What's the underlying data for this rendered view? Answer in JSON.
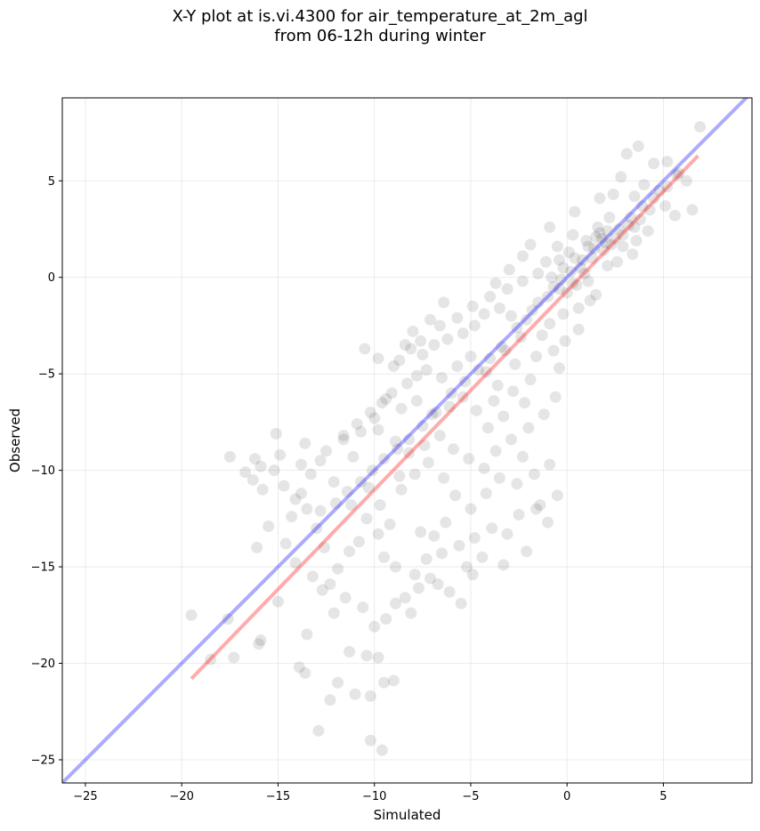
{
  "title_line1": "X-Y plot at is.vi.4300 for air_temperature_at_2m_agl",
  "title_line2": "from 06-12h during winter",
  "chart_data": {
    "type": "scatter",
    "xlabel": "Simulated",
    "ylabel": "Observed",
    "xlim": [
      -26.2,
      9.6
    ],
    "ylim": [
      -26.2,
      9.3
    ],
    "xticks": [
      -25,
      -20,
      -15,
      -10,
      -5,
      0,
      5
    ],
    "yticks": [
      -25,
      -20,
      -15,
      -10,
      -5,
      0,
      5
    ],
    "xtick_labels": [
      "−25",
      "−20",
      "−15",
      "−10",
      "−5",
      "0",
      "5"
    ],
    "ytick_labels": [
      "−25",
      "−20",
      "−15",
      "−10",
      "−5",
      "0",
      "5"
    ],
    "grid": true,
    "point_color": "#000000",
    "point_alpha": 0.1,
    "identity_line": {
      "color": "#0000ff",
      "alpha": 0.33,
      "from": [
        -26.2,
        -26.2
      ],
      "to": [
        9.6,
        9.6
      ]
    },
    "fit_line": {
      "color": "#ff0000",
      "alpha": 0.33,
      "from": [
        -19.5,
        -20.8
      ],
      "to": [
        6.8,
        6.3
      ]
    },
    "series": [
      {
        "points": [
          [
            6.9,
            7.8
          ],
          [
            3.7,
            6.8
          ],
          [
            3.1,
            6.4
          ],
          [
            5.6,
            3.2
          ],
          [
            6.5,
            3.5
          ],
          [
            5.2,
            6.0
          ],
          [
            4.5,
            5.9
          ],
          [
            5.8,
            5.4
          ],
          [
            6.2,
            5.0
          ],
          [
            4.0,
            4.8
          ],
          [
            4.8,
            4.5
          ],
          [
            3.5,
            4.2
          ],
          [
            2.4,
            4.3
          ],
          [
            2.8,
            5.2
          ],
          [
            1.7,
            4.1
          ],
          [
            0.4,
            3.4
          ],
          [
            -0.9,
            2.6
          ],
          [
            -1.9,
            1.7
          ],
          [
            -2.3,
            1.1
          ],
          [
            -3.0,
            0.4
          ],
          [
            -3.7,
            -0.3
          ],
          [
            -1.1,
            0.8
          ],
          [
            -0.5,
            1.6
          ],
          [
            0.3,
            2.2
          ],
          [
            1.0,
            1.9
          ],
          [
            1.6,
            2.6
          ],
          [
            2.1,
            2.4
          ],
          [
            2.5,
            2.0
          ],
          [
            1.9,
            1.4
          ],
          [
            1.3,
            1.0
          ],
          [
            2.9,
            1.6
          ],
          [
            3.2,
            2.7
          ],
          [
            3.8,
            3.0
          ],
          [
            4.3,
            3.5
          ],
          [
            2.2,
            3.1
          ],
          [
            1.5,
            2.1
          ],
          [
            0.8,
            0.9
          ],
          [
            0.2,
            0.3
          ],
          [
            0.5,
            -0.4
          ],
          [
            0.0,
            -0.8
          ],
          [
            -0.3,
            -0.1
          ],
          [
            -0.7,
            -0.5
          ],
          [
            0.9,
            0.2
          ],
          [
            1.1,
            -0.2
          ],
          [
            -0.4,
            0.9
          ],
          [
            0.1,
            1.3
          ],
          [
            2.6,
            0.8
          ],
          [
            3.4,
            1.2
          ],
          [
            1.2,
            -1.2
          ],
          [
            0.6,
            -1.6
          ],
          [
            -0.2,
            -1.9
          ],
          [
            -0.9,
            -2.4
          ],
          [
            -1.5,
            -1.3
          ],
          [
            -2.1,
            -2.2
          ],
          [
            -0.1,
            -3.3
          ],
          [
            -0.7,
            -3.8
          ],
          [
            -1.3,
            -3.0
          ],
          [
            -2.4,
            -3.1
          ],
          [
            -2.9,
            -2.0
          ],
          [
            -3.5,
            -1.6
          ],
          [
            -4.3,
            -1.9
          ],
          [
            -4.8,
            -2.5
          ],
          [
            -5.4,
            -2.9
          ],
          [
            -6.2,
            -3.2
          ],
          [
            -6.9,
            -3.5
          ],
          [
            -7.5,
            -4.0
          ],
          [
            -8.1,
            -3.7
          ],
          [
            -8.7,
            -4.3
          ],
          [
            -7.3,
            -4.8
          ],
          [
            -6.5,
            -5.2
          ],
          [
            -5.7,
            -4.6
          ],
          [
            -5.0,
            -4.1
          ],
          [
            -4.2,
            -4.9
          ],
          [
            -3.6,
            -5.6
          ],
          [
            -2.8,
            -5.9
          ],
          [
            -2.2,
            -6.5
          ],
          [
            -3.3,
            -7.2
          ],
          [
            -4.1,
            -7.8
          ],
          [
            -4.7,
            -6.9
          ],
          [
            -5.4,
            -6.2
          ],
          [
            -6.1,
            -6.7
          ],
          [
            -7.0,
            -7.1
          ],
          [
            -7.8,
            -6.4
          ],
          [
            -8.6,
            -6.8
          ],
          [
            -9.4,
            -6.3
          ],
          [
            -10.2,
            -7.0
          ],
          [
            -10.9,
            -7.6
          ],
          [
            -11.6,
            -8.2
          ],
          [
            -9.8,
            -7.9
          ],
          [
            -8.9,
            -8.5
          ],
          [
            -8.2,
            -9.1
          ],
          [
            -7.4,
            -8.7
          ],
          [
            -6.6,
            -8.2
          ],
          [
            -5.9,
            -8.9
          ],
          [
            -5.1,
            -9.4
          ],
          [
            -4.3,
            -9.9
          ],
          [
            -3.5,
            -10.4
          ],
          [
            -2.6,
            -10.7
          ],
          [
            -1.7,
            -10.2
          ],
          [
            -0.9,
            -9.7
          ],
          [
            -0.5,
            -11.3
          ],
          [
            -1.6,
            -12.0
          ],
          [
            -2.5,
            -12.3
          ],
          [
            -3.1,
            -13.3
          ],
          [
            -3.9,
            -13.0
          ],
          [
            -4.4,
            -14.5
          ],
          [
            -5.2,
            -15.0
          ],
          [
            -5.6,
            -13.9
          ],
          [
            -6.3,
            -12.7
          ],
          [
            -6.9,
            -13.4
          ],
          [
            -7.3,
            -14.6
          ],
          [
            -7.9,
            -15.4
          ],
          [
            -8.4,
            -16.6
          ],
          [
            -8.9,
            -15.0
          ],
          [
            -9.5,
            -14.5
          ],
          [
            -9.8,
            -13.3
          ],
          [
            -10.4,
            -12.5
          ],
          [
            -10.8,
            -13.7
          ],
          [
            -11.3,
            -14.2
          ],
          [
            -11.9,
            -15.1
          ],
          [
            -12.3,
            -15.9
          ],
          [
            -12.6,
            -14.0
          ],
          [
            -13.0,
            -13.0
          ],
          [
            -13.5,
            -12.0
          ],
          [
            -14.1,
            -11.5
          ],
          [
            -14.7,
            -10.8
          ],
          [
            -15.2,
            -10.0
          ],
          [
            -15.9,
            -9.8
          ],
          [
            -16.3,
            -10.5
          ],
          [
            -15.5,
            -12.9
          ],
          [
            -14.6,
            -13.8
          ],
          [
            -14.1,
            -14.8
          ],
          [
            -13.2,
            -15.5
          ],
          [
            -12.7,
            -16.2
          ],
          [
            -11.5,
            -16.6
          ],
          [
            -10.6,
            -17.1
          ],
          [
            -10.0,
            -18.1
          ],
          [
            -9.4,
            -17.7
          ],
          [
            -8.9,
            -16.9
          ],
          [
            -8.1,
            -17.4
          ],
          [
            -7.7,
            -16.1
          ],
          [
            -7.1,
            -15.6
          ],
          [
            -6.7,
            -15.9
          ],
          [
            -6.1,
            -16.3
          ],
          [
            -5.5,
            -16.9
          ],
          [
            -12.1,
            -17.4
          ],
          [
            -13.5,
            -18.5
          ],
          [
            -11.3,
            -19.4
          ],
          [
            -10.4,
            -19.6
          ],
          [
            -9.8,
            -19.7
          ],
          [
            -13.9,
            -20.2
          ],
          [
            -13.6,
            -20.5
          ],
          [
            -12.3,
            -21.9
          ],
          [
            -11.9,
            -21.0
          ],
          [
            -11.0,
            -21.6
          ],
          [
            -10.2,
            -21.7
          ],
          [
            -9.5,
            -21.0
          ],
          [
            -9.0,
            -20.9
          ],
          [
            -12.9,
            -23.5
          ],
          [
            -10.2,
            -24.0
          ],
          [
            -9.6,
            -24.5
          ],
          [
            -15.9,
            -18.8
          ],
          [
            -16.0,
            -19.0
          ],
          [
            -17.6,
            -17.7
          ],
          [
            -18.5,
            -19.8
          ],
          [
            -17.3,
            -19.7
          ],
          [
            -19.5,
            -17.5
          ],
          [
            -16.1,
            -14.0
          ],
          [
            -17.5,
            -9.3
          ],
          [
            -16.2,
            -9.4
          ],
          [
            -15.1,
            -8.1
          ],
          [
            -13.6,
            -8.6
          ],
          [
            -12.8,
            -9.5
          ],
          [
            -11.6,
            -8.4
          ],
          [
            -10.7,
            -8.0
          ],
          [
            -10.0,
            -7.3
          ],
          [
            -9.6,
            -6.5
          ],
          [
            -9.1,
            -6.0
          ],
          [
            -8.3,
            -5.5
          ],
          [
            -7.8,
            -5.1
          ],
          [
            -9.0,
            -4.6
          ],
          [
            -9.8,
            -4.2
          ],
          [
            -10.5,
            -3.7
          ],
          [
            -8.4,
            -3.5
          ],
          [
            -7.6,
            -3.3
          ],
          [
            -6.6,
            -2.5
          ],
          [
            -5.7,
            -2.1
          ],
          [
            -4.9,
            -1.5
          ],
          [
            -4.0,
            -1.0
          ],
          [
            -3.1,
            -0.6
          ],
          [
            -2.3,
            -0.2
          ],
          [
            -1.5,
            0.2
          ],
          [
            -0.8,
            0.0
          ],
          [
            -0.2,
            0.5
          ],
          [
            0.4,
            1.0
          ],
          [
            1.1,
            1.6
          ],
          [
            1.8,
            2.0
          ],
          [
            2.3,
            1.7
          ],
          [
            2.7,
            2.5
          ],
          [
            3.3,
            3.1
          ],
          [
            3.9,
            3.7
          ],
          [
            4.5,
            4.1
          ],
          [
            5.2,
            4.7
          ],
          [
            5.7,
            5.3
          ],
          [
            1.7,
            2.3
          ],
          [
            2.0,
            1.8
          ],
          [
            1.4,
            1.5
          ],
          [
            2.9,
            2.2
          ],
          [
            3.5,
            2.6
          ],
          [
            0.7,
            0.5
          ],
          [
            -0.4,
            -0.6
          ],
          [
            0.3,
            -0.3
          ],
          [
            -1.0,
            -1.0
          ],
          [
            -1.8,
            -1.7
          ],
          [
            -2.6,
            -2.6
          ],
          [
            -3.4,
            -3.6
          ],
          [
            -4.0,
            -4.2
          ],
          [
            -4.6,
            -4.8
          ],
          [
            -5.3,
            -5.4
          ],
          [
            -6.0,
            -6.0
          ],
          [
            -6.8,
            -7.0
          ],
          [
            -7.5,
            -7.7
          ],
          [
            -8.2,
            -8.4
          ],
          [
            -8.8,
            -8.9
          ],
          [
            -9.5,
            -9.4
          ],
          [
            -10.1,
            -10.0
          ],
          [
            -10.7,
            -10.6
          ],
          [
            -11.4,
            -11.1
          ],
          [
            -12.0,
            -11.7
          ],
          [
            -12.8,
            -12.1
          ],
          [
            -13.3,
            -10.2
          ],
          [
            -12.5,
            -9.0
          ],
          [
            -11.1,
            -9.3
          ],
          [
            -10.3,
            -10.9
          ],
          [
            -9.7,
            -11.8
          ],
          [
            -8.6,
            -11.0
          ],
          [
            -7.9,
            -10.2
          ],
          [
            -7.2,
            -9.6
          ],
          [
            -6.4,
            -10.4
          ],
          [
            -5.8,
            -11.3
          ],
          [
            -5.0,
            -12.0
          ],
          [
            -4.2,
            -11.2
          ],
          [
            -3.7,
            -9.0
          ],
          [
            -2.9,
            -8.4
          ],
          [
            -2.0,
            -7.8
          ],
          [
            -1.2,
            -7.1
          ],
          [
            -0.6,
            -6.2
          ],
          [
            -1.9,
            -5.3
          ],
          [
            -2.7,
            -4.5
          ],
          [
            -3.2,
            -3.8
          ],
          [
            -1.6,
            -4.1
          ],
          [
            -0.4,
            -4.7
          ],
          [
            0.6,
            -2.7
          ],
          [
            1.5,
            -0.9
          ],
          [
            2.1,
            0.6
          ],
          [
            3.6,
            1.9
          ],
          [
            4.2,
            2.4
          ],
          [
            5.1,
            3.7
          ],
          [
            -6.4,
            -1.3
          ],
          [
            -7.1,
            -2.2
          ],
          [
            -8.0,
            -2.8
          ],
          [
            -3.8,
            -6.4
          ],
          [
            -2.3,
            -9.3
          ],
          [
            -1.4,
            -11.8
          ],
          [
            -4.8,
            -13.5
          ],
          [
            -3.3,
            -14.9
          ],
          [
            -7.6,
            -13.2
          ],
          [
            -9.2,
            -12.8
          ],
          [
            -11.2,
            -11.8
          ],
          [
            -14.3,
            -12.4
          ],
          [
            -15.8,
            -11.0
          ],
          [
            -16.7,
            -10.1
          ],
          [
            -14.9,
            -9.2
          ],
          [
            -13.8,
            -9.7
          ],
          [
            -12.1,
            -10.6
          ],
          [
            -8.7,
            -10.3
          ],
          [
            -6.5,
            -14.3
          ],
          [
            -4.9,
            -15.4
          ],
          [
            -2.1,
            -14.2
          ],
          [
            -1.0,
            -12.7
          ],
          [
            -13.8,
            -11.2
          ],
          [
            -15.0,
            -16.8
          ]
        ]
      }
    ]
  }
}
